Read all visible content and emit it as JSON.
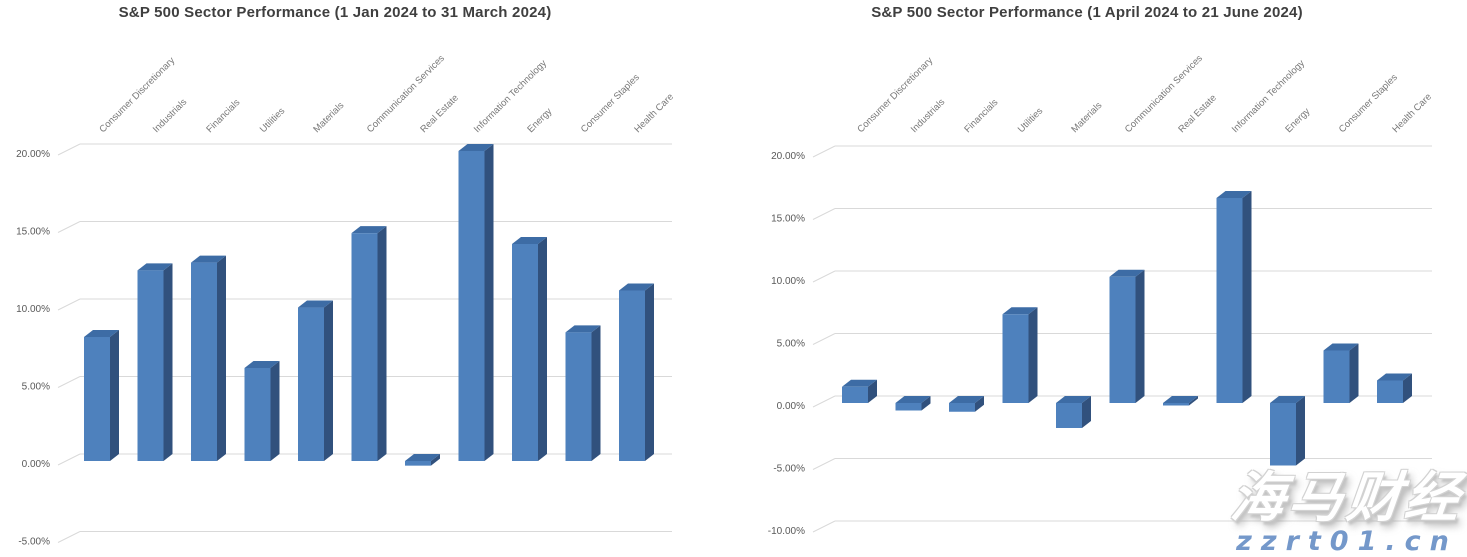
{
  "page": {
    "background": "#ffffff"
  },
  "watermark": {
    "brand": "海马财经",
    "url": "zzrt01.cn",
    "brand_color": "#ffffff",
    "url_color": "#7498ca"
  },
  "chart_data": [
    {
      "type": "bar",
      "style": "3d-column",
      "title": "S&P 500 Sector Performance (1 Jan 2024 to 31 March 2024)",
      "categories": [
        "Consumer Discretionary",
        "Industrials",
        "Financials",
        "Utilities",
        "Materials",
        "Communication Services",
        "Real Estate",
        "Information Technology",
        "Energy",
        "Consumer Staples",
        "Health Care"
      ],
      "values": [
        8.0,
        12.3,
        12.8,
        6.0,
        9.9,
        14.7,
        -0.3,
        20.0,
        14.0,
        8.3,
        11.0
      ],
      "unit": "%",
      "xlabel": "",
      "ylabel": "",
      "ylim": [
        -5,
        20
      ],
      "ytick_step": 5,
      "ytick_labels": [
        "20.00%",
        "15.00%",
        "10.00%",
        "5.00%",
        "0.00%",
        "-5.00%"
      ],
      "grid": true,
      "legend": false,
      "colors": {
        "bar_front": "#4e81bd",
        "bar_side": "#31517d",
        "bar_top": "#3d6ca5",
        "grid": "#d9d9d9",
        "axis_text": "#595959",
        "category_text": "#787878",
        "title_text": "#3f3f3f"
      }
    },
    {
      "type": "bar",
      "style": "3d-column",
      "title": "S&P 500 Sector Performance (1 April 2024 to 21 June 2024)",
      "categories": [
        "Consumer Discretionary",
        "Industrials",
        "Financials",
        "Utilities",
        "Materials",
        "Communication Services",
        "Real Estate",
        "Information Technology",
        "Energy",
        "Consumer Staples",
        "Health Care"
      ],
      "values": [
        1.3,
        -0.6,
        -0.7,
        7.1,
        -2.0,
        10.1,
        -0.2,
        16.4,
        -5.0,
        4.2,
        1.8
      ],
      "unit": "%",
      "xlabel": "",
      "ylabel": "",
      "ylim": [
        -10,
        20
      ],
      "ytick_step": 5,
      "ytick_labels": [
        "20.00%",
        "15.00%",
        "10.00%",
        "5.00%",
        "0.00%",
        "-5.00%",
        "-10.00%"
      ],
      "grid": true,
      "legend": false,
      "colors": {
        "bar_front": "#4e81bd",
        "bar_side": "#31517d",
        "bar_top": "#3d6ca5",
        "grid": "#d9d9d9",
        "axis_text": "#595959",
        "category_text": "#787878",
        "title_text": "#3f3f3f"
      }
    }
  ]
}
